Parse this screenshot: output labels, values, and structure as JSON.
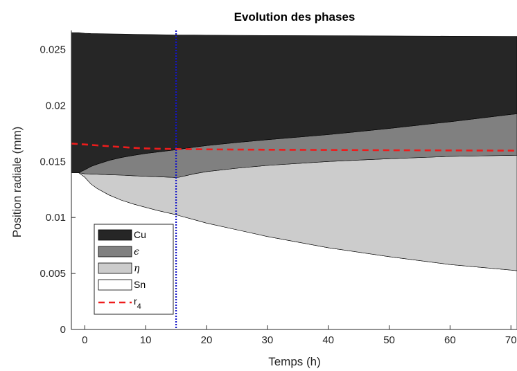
{
  "chart_data": {
    "type": "area",
    "title": "Evolution des phases",
    "xlabel": "Temps (h)",
    "ylabel": "Position radiale (mm)",
    "xlim": [
      -2.2,
      71
    ],
    "ylim": [
      0,
      0.0267
    ],
    "x_ticks": [
      0,
      10,
      20,
      30,
      40,
      50,
      60,
      70
    ],
    "x_tick_labels": [
      "0",
      "10",
      "20",
      "30",
      "40",
      "50",
      "60",
      "70"
    ],
    "y_ticks": [
      0,
      0.005,
      0.01,
      0.015,
      0.02,
      0.025
    ],
    "y_tick_labels": [
      "0",
      "0.005",
      "0.01",
      "0.015",
      "0.02",
      "0.025"
    ],
    "grid": false,
    "legend_position": "bottom-left",
    "boundaries": {
      "x": [
        -2.2,
        -1,
        0,
        1,
        2,
        4,
        6,
        8,
        10,
        12,
        15,
        15.5,
        18,
        20,
        25,
        30,
        40,
        50,
        60,
        70,
        71
      ],
      "cu_outer": [
        0.0265,
        0.0265,
        0.02645,
        0.02643,
        0.02642,
        0.0264,
        0.02638,
        0.02636,
        0.02634,
        0.02633,
        0.0263,
        0.0263,
        0.02629,
        0.02628,
        0.02626,
        0.02625,
        0.02623,
        0.02621,
        0.02619,
        0.02617,
        0.02617
      ],
      "cu_epsilon": [
        0.014,
        0.014,
        0.01425,
        0.01455,
        0.01475,
        0.0151,
        0.01535,
        0.01555,
        0.01572,
        0.01585,
        0.01605,
        0.01609,
        0.01628,
        0.01642,
        0.0167,
        0.01695,
        0.0174,
        0.01795,
        0.01855,
        0.0192,
        0.01925
      ],
      "epsilon_eta": [
        0.014,
        0.014,
        0.0139,
        0.01388,
        0.01386,
        0.01382,
        0.01378,
        0.01373,
        0.01368,
        0.01364,
        0.01357,
        0.0136,
        0.0139,
        0.0141,
        0.0144,
        0.01465,
        0.015,
        0.01525,
        0.01545,
        0.01555,
        0.01556
      ],
      "eta_sn": [
        0.014,
        0.014,
        0.0136,
        0.013,
        0.0126,
        0.012,
        0.01155,
        0.0112,
        0.0109,
        0.01062,
        0.01025,
        0.01017,
        0.0098,
        0.0095,
        0.0089,
        0.0083,
        0.0073,
        0.0065,
        0.0058,
        0.0053,
        0.00525
      ]
    },
    "r4": {
      "x": [
        -2.2,
        0,
        2,
        4,
        6,
        8,
        10,
        12,
        15,
        20,
        30,
        40,
        50,
        60,
        70,
        71
      ],
      "y": [
        0.0166,
        0.01652,
        0.01644,
        0.01636,
        0.01629,
        0.01622,
        0.01617,
        0.01614,
        0.01611,
        0.01608,
        0.01605,
        0.01603,
        0.01601,
        0.01599,
        0.01597,
        0.01596
      ],
      "color": "#ee1c1c"
    },
    "vertical_line": {
      "x": 15,
      "color": "#1414c8"
    },
    "series": [
      {
        "name": "Cu",
        "color": "#262626"
      },
      {
        "name": "ϵ",
        "color": "#808080"
      },
      {
        "name": "η",
        "color": "#cccccc"
      },
      {
        "name": "Sn",
        "color": "#ffffff"
      },
      {
        "name": "r",
        "subscript": "4",
        "color": "#ee1c1c"
      }
    ]
  }
}
